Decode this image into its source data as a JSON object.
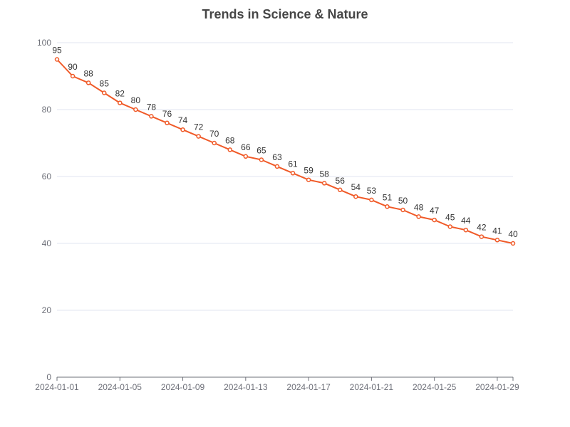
{
  "chart_data": {
    "type": "line",
    "title": "Trends in Science & Nature",
    "xlabel": "",
    "ylabel": "",
    "ylim": [
      0,
      100
    ],
    "y_ticks": [
      0,
      20,
      40,
      60,
      80,
      100
    ],
    "x": [
      "2024-01-01",
      "2024-01-02",
      "2024-01-03",
      "2024-01-04",
      "2024-01-05",
      "2024-01-06",
      "2024-01-07",
      "2024-01-08",
      "2024-01-09",
      "2024-01-10",
      "2024-01-11",
      "2024-01-12",
      "2024-01-13",
      "2024-01-14",
      "2024-01-15",
      "2024-01-16",
      "2024-01-17",
      "2024-01-18",
      "2024-01-19",
      "2024-01-20",
      "2024-01-21",
      "2024-01-22",
      "2024-01-23",
      "2024-01-24",
      "2024-01-25",
      "2024-01-26",
      "2024-01-27",
      "2024-01-28",
      "2024-01-29",
      "2024-01-30"
    ],
    "x_tick_labels": [
      "2024-01-01",
      "2024-01-05",
      "2024-01-09",
      "2024-01-13",
      "2024-01-17",
      "2024-01-21",
      "2024-01-25",
      "2024-01-29"
    ],
    "series": [
      {
        "values": [
          95,
          90,
          88,
          85,
          82,
          80,
          78,
          76,
          74,
          72,
          70,
          68,
          66,
          65,
          63,
          61,
          59,
          58,
          56,
          54,
          53,
          51,
          50,
          48,
          47,
          45,
          44,
          42,
          41,
          40
        ],
        "color": "#f05a28"
      }
    ],
    "grid": true,
    "legend": "none"
  }
}
